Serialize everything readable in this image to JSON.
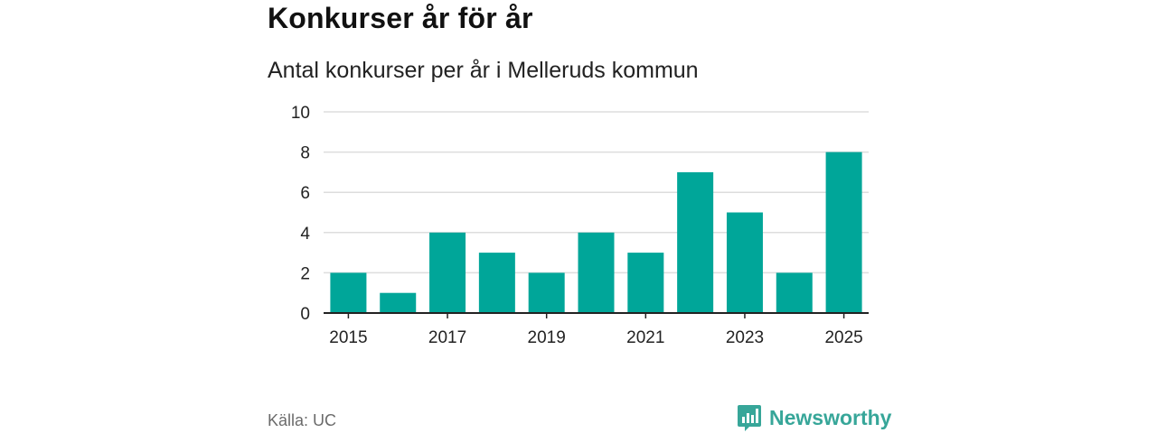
{
  "header": {
    "title": "Konkurser år för år",
    "subtitle": "Antal konkurser per år i Melleruds kommun"
  },
  "footer": {
    "source": "Källa: UC",
    "brand": "Newsworthy"
  },
  "colors": {
    "bar": "#00a699",
    "grid": "#dddddd",
    "axis": "#222222",
    "brand": "#37a699"
  },
  "chart_data": {
    "type": "bar",
    "title": "Konkurser år för år",
    "subtitle": "Antal konkurser per år i Melleruds kommun",
    "xlabel": "",
    "ylabel": "",
    "categories": [
      "2015",
      "2016",
      "2017",
      "2018",
      "2019",
      "2020",
      "2021",
      "2022",
      "2023",
      "2024",
      "2025"
    ],
    "values": [
      2,
      1,
      4,
      3,
      2,
      4,
      3,
      7,
      5,
      2,
      8
    ],
    "x_tick_labels": [
      "2015",
      "2017",
      "2019",
      "2021",
      "2023",
      "2025"
    ],
    "y_ticks": [
      0,
      2,
      4,
      6,
      8,
      10
    ],
    "ylim": [
      0,
      10
    ],
    "grid": true,
    "legend": "none"
  }
}
